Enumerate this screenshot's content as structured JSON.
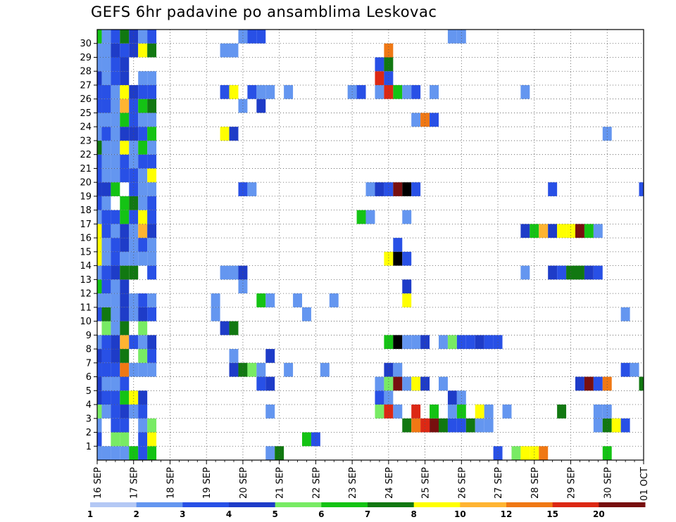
{
  "chart_data": {
    "type": "heatmap",
    "title": "GEFS 6hr padavine po ansamblima Leskovac",
    "xlabel": "",
    "ylabel": "",
    "x_tick_labels": [
      "16 SEP",
      "17 SEP",
      "18 SEP",
      "19 SEP",
      "20 SEP",
      "21 SEP",
      "22 SEP",
      "23 SEP",
      "24 SEP",
      "25 SEP",
      "26 SEP",
      "27 SEP",
      "28 SEP",
      "29 SEP",
      "30 SEP",
      "01 OCT"
    ],
    "x_steps_per_day": 4,
    "x_range_steps": [
      0,
      61
    ],
    "y_members": [
      0,
      1,
      2,
      3,
      4,
      5,
      6,
      7,
      8,
      9,
      10,
      11,
      12,
      13,
      14,
      15,
      16,
      17,
      18,
      19,
      20,
      21,
      22,
      23,
      24,
      25,
      26,
      27,
      28,
      29,
      30
    ],
    "y_tick_labels": [
      "1",
      "2",
      "3",
      "4",
      "5",
      "6",
      "7",
      "8",
      "9",
      "10",
      "11",
      "12",
      "13",
      "14",
      "15",
      "16",
      "17",
      "18",
      "19",
      "20",
      "21",
      "22",
      "23",
      "24",
      "25",
      "26",
      "27",
      "28",
      "29",
      "30"
    ],
    "grid": "dotted",
    "colorbar": {
      "position": "bottom",
      "labels": [
        "1",
        "2",
        "3",
        "4",
        "5",
        "6",
        "7",
        "8",
        "10",
        "12",
        "15",
        "20"
      ],
      "colors": [
        "#b4c8f5",
        "#6496f0",
        "#2850e6",
        "#1e3cc8",
        "#78eb64",
        "#14c314",
        "#117811",
        "#ffff00",
        "#ffb432",
        "#f07814",
        "#dc2814",
        "#780f0f"
      ]
    },
    "cells": [
      [
        0,
        0,
        1
      ],
      [
        0,
        1,
        1
      ],
      [
        0,
        2,
        1
      ],
      [
        0,
        3,
        1
      ],
      [
        0,
        4,
        5
      ],
      [
        0,
        5,
        2
      ],
      [
        0,
        6,
        5
      ],
      [
        0,
        19,
        1
      ],
      [
        0,
        20,
        6
      ],
      [
        0,
        44,
        2
      ],
      [
        0,
        46,
        4
      ],
      [
        0,
        47,
        7
      ],
      [
        0,
        48,
        7
      ],
      [
        0,
        49,
        9
      ],
      [
        0,
        56,
        5
      ],
      [
        1,
        0,
        2
      ],
      [
        1,
        2,
        4
      ],
      [
        1,
        3,
        4
      ],
      [
        1,
        5,
        2
      ],
      [
        1,
        6,
        7
      ],
      [
        1,
        23,
        5
      ],
      [
        1,
        24,
        2
      ],
      [
        2,
        0,
        1
      ],
      [
        2,
        2,
        2
      ],
      [
        2,
        3,
        2
      ],
      [
        2,
        5,
        1
      ],
      [
        2,
        6,
        4
      ],
      [
        2,
        34,
        6
      ],
      [
        2,
        35,
        9
      ],
      [
        2,
        36,
        10
      ],
      [
        2,
        37,
        11
      ],
      [
        2,
        38,
        6
      ],
      [
        2,
        39,
        2
      ],
      [
        2,
        40,
        2
      ],
      [
        2,
        41,
        6
      ],
      [
        2,
        42,
        1
      ],
      [
        2,
        43,
        1
      ],
      [
        2,
        55,
        1
      ],
      [
        2,
        56,
        6
      ],
      [
        2,
        57,
        7
      ],
      [
        2,
        58,
        2
      ],
      [
        3,
        0,
        4
      ],
      [
        3,
        1,
        1
      ],
      [
        3,
        2,
        2
      ],
      [
        3,
        3,
        3
      ],
      [
        3,
        4,
        1
      ],
      [
        3,
        5,
        2
      ],
      [
        3,
        19,
        1
      ],
      [
        3,
        31,
        4
      ],
      [
        3,
        32,
        10
      ],
      [
        3,
        33,
        1
      ],
      [
        3,
        35,
        10
      ],
      [
        3,
        37,
        5
      ],
      [
        3,
        39,
        1
      ],
      [
        3,
        40,
        5
      ],
      [
        3,
        42,
        7
      ],
      [
        3,
        43,
        1
      ],
      [
        3,
        45,
        1
      ],
      [
        3,
        51,
        6
      ],
      [
        3,
        55,
        1
      ],
      [
        3,
        56,
        1
      ],
      [
        4,
        0,
        3
      ],
      [
        4,
        1,
        2
      ],
      [
        4,
        2,
        2
      ],
      [
        4,
        3,
        5
      ],
      [
        4,
        4,
        7
      ],
      [
        4,
        5,
        3
      ],
      [
        4,
        31,
        2
      ],
      [
        4,
        32,
        1
      ],
      [
        4,
        39,
        3
      ],
      [
        4,
        40,
        1
      ],
      [
        5,
        0,
        3
      ],
      [
        5,
        1,
        1
      ],
      [
        5,
        2,
        1
      ],
      [
        5,
        3,
        2
      ],
      [
        5,
        18,
        2
      ],
      [
        5,
        19,
        3
      ],
      [
        5,
        31,
        1
      ],
      [
        5,
        32,
        4
      ],
      [
        5,
        33,
        11
      ],
      [
        5,
        34,
        1
      ],
      [
        5,
        35,
        7
      ],
      [
        5,
        36,
        3
      ],
      [
        5,
        38,
        1
      ],
      [
        5,
        53,
        3
      ],
      [
        5,
        54,
        11
      ],
      [
        5,
        55,
        2
      ],
      [
        5,
        56,
        9
      ],
      [
        5,
        60,
        6
      ],
      [
        6,
        0,
        2
      ],
      [
        6,
        1,
        2
      ],
      [
        6,
        2,
        2
      ],
      [
        6,
        3,
        9
      ],
      [
        6,
        4,
        1
      ],
      [
        6,
        5,
        1
      ],
      [
        6,
        6,
        1
      ],
      [
        6,
        15,
        3
      ],
      [
        6,
        16,
        6
      ],
      [
        6,
        17,
        4
      ],
      [
        6,
        18,
        1
      ],
      [
        6,
        21,
        1
      ],
      [
        6,
        25,
        1
      ],
      [
        6,
        32,
        3
      ],
      [
        6,
        33,
        1
      ],
      [
        6,
        58,
        2
      ],
      [
        6,
        59,
        1
      ],
      [
        7,
        0,
        3
      ],
      [
        7,
        1,
        2
      ],
      [
        7,
        2,
        3
      ],
      [
        7,
        3,
        6
      ],
      [
        7,
        5,
        4
      ],
      [
        7,
        6,
        2
      ],
      [
        7,
        15,
        1
      ],
      [
        7,
        19,
        3
      ],
      [
        8,
        0,
        1
      ],
      [
        8,
        1,
        2
      ],
      [
        8,
        2,
        3
      ],
      [
        8,
        3,
        8
      ],
      [
        8,
        4,
        2
      ],
      [
        8,
        5,
        1
      ],
      [
        8,
        6,
        3
      ],
      [
        8,
        32,
        5
      ],
      [
        8,
        33,
        12
      ],
      [
        8,
        34,
        1
      ],
      [
        8,
        35,
        1
      ],
      [
        8,
        36,
        3
      ],
      [
        8,
        38,
        1
      ],
      [
        8,
        39,
        4
      ],
      [
        8,
        40,
        2
      ],
      [
        8,
        41,
        2
      ],
      [
        8,
        42,
        3
      ],
      [
        8,
        43,
        2
      ],
      [
        8,
        44,
        2
      ],
      [
        9,
        1,
        4
      ],
      [
        9,
        2,
        1
      ],
      [
        9,
        3,
        6
      ],
      [
        9,
        5,
        4
      ],
      [
        9,
        14,
        3
      ],
      [
        9,
        15,
        6
      ],
      [
        10,
        0,
        2
      ],
      [
        10,
        1,
        6
      ],
      [
        10,
        2,
        1
      ],
      [
        10,
        3,
        3
      ],
      [
        10,
        4,
        1
      ],
      [
        10,
        5,
        3
      ],
      [
        10,
        6,
        2
      ],
      [
        10,
        13,
        1
      ],
      [
        10,
        23,
        1
      ],
      [
        10,
        58,
        1
      ],
      [
        11,
        0,
        1
      ],
      [
        11,
        1,
        1
      ],
      [
        11,
        2,
        1
      ],
      [
        11,
        3,
        3
      ],
      [
        11,
        4,
        1
      ],
      [
        11,
        5,
        2
      ],
      [
        11,
        6,
        1
      ],
      [
        11,
        13,
        1
      ],
      [
        11,
        18,
        5
      ],
      [
        11,
        19,
        1
      ],
      [
        11,
        22,
        1
      ],
      [
        11,
        26,
        1
      ],
      [
        11,
        34,
        7
      ],
      [
        12,
        0,
        5
      ],
      [
        12,
        1,
        2
      ],
      [
        12,
        2,
        1
      ],
      [
        12,
        3,
        3
      ],
      [
        12,
        16,
        1
      ],
      [
        12,
        34,
        3
      ],
      [
        13,
        0,
        1
      ],
      [
        13,
        1,
        2
      ],
      [
        13,
        2,
        3
      ],
      [
        13,
        3,
        6
      ],
      [
        13,
        4,
        6
      ],
      [
        13,
        6,
        2
      ],
      [
        13,
        14,
        1
      ],
      [
        13,
        15,
        1
      ],
      [
        13,
        16,
        3
      ],
      [
        13,
        47,
        1
      ],
      [
        13,
        50,
        3
      ],
      [
        13,
        51,
        2
      ],
      [
        13,
        52,
        6
      ],
      [
        13,
        53,
        6
      ],
      [
        13,
        54,
        3
      ],
      [
        13,
        55,
        2
      ],
      [
        14,
        0,
        7
      ],
      [
        14,
        1,
        1
      ],
      [
        14,
        2,
        2
      ],
      [
        14,
        3,
        1
      ],
      [
        14,
        4,
        1
      ],
      [
        14,
        5,
        1
      ],
      [
        14,
        6,
        1
      ],
      [
        14,
        32,
        7
      ],
      [
        14,
        33,
        12
      ],
      [
        14,
        34,
        2
      ],
      [
        15,
        0,
        7
      ],
      [
        15,
        1,
        1
      ],
      [
        15,
        2,
        2
      ],
      [
        15,
        3,
        3
      ],
      [
        15,
        4,
        1
      ],
      [
        15,
        5,
        2
      ],
      [
        15,
        6,
        1
      ],
      [
        15,
        33,
        2
      ],
      [
        16,
        0,
        7
      ],
      [
        16,
        1,
        2
      ],
      [
        16,
        2,
        1
      ],
      [
        16,
        3,
        3
      ],
      [
        16,
        4,
        1
      ],
      [
        16,
        5,
        8
      ],
      [
        16,
        6,
        3
      ],
      [
        16,
        47,
        3
      ],
      [
        16,
        48,
        5
      ],
      [
        16,
        49,
        8
      ],
      [
        16,
        50,
        3
      ],
      [
        16,
        51,
        7
      ],
      [
        16,
        52,
        7
      ],
      [
        16,
        53,
        11
      ],
      [
        16,
        54,
        5
      ],
      [
        16,
        55,
        1
      ],
      [
        17,
        0,
        1
      ],
      [
        17,
        1,
        2
      ],
      [
        17,
        2,
        2
      ],
      [
        17,
        3,
        5
      ],
      [
        17,
        4,
        2
      ],
      [
        17,
        5,
        7
      ],
      [
        17,
        6,
        2
      ],
      [
        17,
        29,
        5
      ],
      [
        17,
        30,
        1
      ],
      [
        17,
        34,
        1
      ],
      [
        18,
        0,
        2
      ],
      [
        18,
        1,
        1
      ],
      [
        18,
        3,
        5
      ],
      [
        18,
        4,
        6
      ],
      [
        18,
        5,
        1
      ],
      [
        18,
        6,
        2
      ],
      [
        19,
        0,
        3
      ],
      [
        19,
        1,
        3
      ],
      [
        19,
        2,
        5
      ],
      [
        19,
        4,
        2
      ],
      [
        19,
        5,
        1
      ],
      [
        19,
        6,
        1
      ],
      [
        19,
        16,
        2
      ],
      [
        19,
        17,
        1
      ],
      [
        19,
        30,
        1
      ],
      [
        19,
        31,
        3
      ],
      [
        19,
        32,
        2
      ],
      [
        19,
        33,
        11
      ],
      [
        19,
        34,
        12
      ],
      [
        19,
        35,
        2
      ],
      [
        19,
        50,
        2
      ],
      [
        19,
        60,
        2
      ],
      [
        20,
        0,
        2
      ],
      [
        20,
        1,
        1
      ],
      [
        20,
        2,
        1
      ],
      [
        20,
        3,
        2
      ],
      [
        20,
        4,
        2
      ],
      [
        20,
        5,
        1
      ],
      [
        20,
        6,
        7
      ],
      [
        21,
        0,
        2
      ],
      [
        21,
        1,
        1
      ],
      [
        21,
        2,
        1
      ],
      [
        21,
        3,
        2
      ],
      [
        21,
        4,
        1
      ],
      [
        21,
        5,
        2
      ],
      [
        21,
        6,
        2
      ],
      [
        22,
        0,
        6
      ],
      [
        22,
        1,
        1
      ],
      [
        22,
        2,
        1
      ],
      [
        22,
        3,
        7
      ],
      [
        22,
        4,
        1
      ],
      [
        22,
        5,
        5
      ],
      [
        22,
        6,
        1
      ],
      [
        23,
        0,
        1
      ],
      [
        23,
        1,
        2
      ],
      [
        23,
        2,
        1
      ],
      [
        23,
        3,
        3
      ],
      [
        23,
        4,
        3
      ],
      [
        23,
        5,
        2
      ],
      [
        23,
        6,
        5
      ],
      [
        23,
        14,
        7
      ],
      [
        23,
        15,
        3
      ],
      [
        23,
        56,
        1
      ],
      [
        24,
        0,
        1
      ],
      [
        24,
        1,
        1
      ],
      [
        24,
        2,
        1
      ],
      [
        24,
        3,
        5
      ],
      [
        24,
        4,
        2
      ],
      [
        24,
        5,
        1
      ],
      [
        24,
        6,
        1
      ],
      [
        24,
        35,
        1
      ],
      [
        24,
        36,
        9
      ],
      [
        24,
        37,
        2
      ],
      [
        25,
        0,
        2
      ],
      [
        25,
        1,
        2
      ],
      [
        25,
        2,
        1
      ],
      [
        25,
        3,
        8
      ],
      [
        25,
        4,
        2
      ],
      [
        25,
        5,
        5
      ],
      [
        25,
        6,
        6
      ],
      [
        25,
        16,
        1
      ],
      [
        25,
        18,
        3
      ],
      [
        26,
        0,
        2
      ],
      [
        26,
        1,
        2
      ],
      [
        26,
        2,
        1
      ],
      [
        26,
        3,
        7
      ],
      [
        26,
        4,
        3
      ],
      [
        26,
        5,
        2
      ],
      [
        26,
        6,
        2
      ],
      [
        26,
        14,
        2
      ],
      [
        26,
        15,
        7
      ],
      [
        26,
        17,
        2
      ],
      [
        26,
        18,
        1
      ],
      [
        26,
        19,
        1
      ],
      [
        26,
        21,
        1
      ],
      [
        26,
        28,
        1
      ],
      [
        26,
        29,
        2
      ],
      [
        26,
        31,
        1
      ],
      [
        26,
        32,
        10
      ],
      [
        26,
        33,
        5
      ],
      [
        26,
        34,
        1
      ],
      [
        26,
        35,
        2
      ],
      [
        26,
        37,
        1
      ],
      [
        26,
        47,
        1
      ],
      [
        27,
        0,
        3
      ],
      [
        27,
        1,
        1
      ],
      [
        27,
        2,
        2
      ],
      [
        27,
        3,
        3
      ],
      [
        27,
        5,
        1
      ],
      [
        27,
        6,
        1
      ],
      [
        27,
        31,
        10
      ],
      [
        27,
        32,
        2
      ],
      [
        28,
        0,
        1
      ],
      [
        28,
        1,
        1
      ],
      [
        28,
        2,
        2
      ],
      [
        28,
        3,
        3
      ],
      [
        28,
        31,
        2
      ],
      [
        28,
        32,
        6
      ],
      [
        29,
        0,
        1
      ],
      [
        29,
        1,
        1
      ],
      [
        29,
        2,
        3
      ],
      [
        29,
        3,
        2
      ],
      [
        29,
        4,
        3
      ],
      [
        29,
        5,
        7
      ],
      [
        29,
        6,
        6
      ],
      [
        29,
        14,
        1
      ],
      [
        29,
        15,
        1
      ],
      [
        29,
        32,
        9
      ],
      [
        30,
        0,
        5
      ],
      [
        30,
        1,
        1
      ],
      [
        30,
        2,
        2
      ],
      [
        30,
        3,
        6
      ],
      [
        30,
        4,
        3
      ],
      [
        30,
        5,
        1
      ],
      [
        30,
        6,
        2
      ],
      [
        30,
        16,
        1
      ],
      [
        30,
        17,
        2
      ],
      [
        30,
        18,
        2
      ],
      [
        30,
        39,
        1
      ],
      [
        30,
        40,
        1
      ]
    ]
  }
}
